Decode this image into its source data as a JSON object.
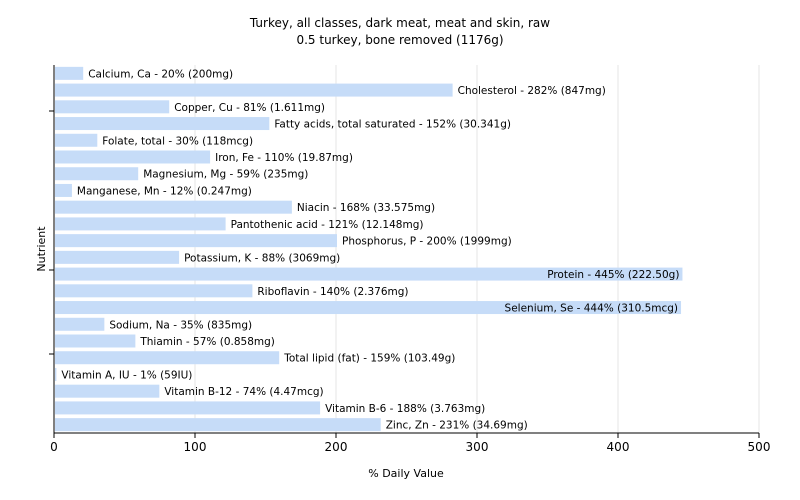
{
  "chart_data": {
    "type": "bar",
    "orientation": "horizontal",
    "title": "Turkey, all classes, dark meat, meat and skin, raw",
    "subtitle": "0.5 turkey, bone removed (1176g)",
    "xlabel": "% Daily Value",
    "ylabel": "Nutrient",
    "xlim": [
      0,
      500
    ],
    "xticks": [
      0,
      100,
      200,
      300,
      400,
      500
    ],
    "grid": true,
    "bar_color": "#c6dcf8",
    "grid_color": "#e6e6e6",
    "categories": [
      "Calcium, Ca - 20% (200mg)",
      "Cholesterol - 282% (847mg)",
      "Copper, Cu - 81% (1.611mg)",
      "Fatty acids, total saturated - 152% (30.341g)",
      "Folate, total - 30% (118mcg)",
      "Iron, Fe - 110% (19.87mg)",
      "Magnesium, Mg - 59% (235mg)",
      "Manganese, Mn - 12% (0.247mg)",
      "Niacin - 168% (33.575mg)",
      "Pantothenic acid - 121% (12.148mg)",
      "Phosphorus, P - 200% (1999mg)",
      "Potassium, K - 88% (3069mg)",
      "Protein - 445% (222.50g)",
      "Riboflavin - 140% (2.376mg)",
      "Selenium, Se - 444% (310.5mcg)",
      "Sodium, Na - 35% (835mg)",
      "Thiamin - 57% (0.858mg)",
      "Total lipid (fat) - 159% (103.49g)",
      "Vitamin A, IU - 1% (59IU)",
      "Vitamin B-12 - 74% (4.47mcg)",
      "Vitamin B-6 - 188% (3.763mg)",
      "Zinc, Zn - 231% (34.69mg)"
    ],
    "values": [
      20,
      282,
      81,
      152,
      30,
      110,
      59,
      12,
      168,
      121,
      200,
      88,
      445,
      140,
      444,
      35,
      57,
      159,
      1,
      74,
      188,
      231
    ]
  }
}
